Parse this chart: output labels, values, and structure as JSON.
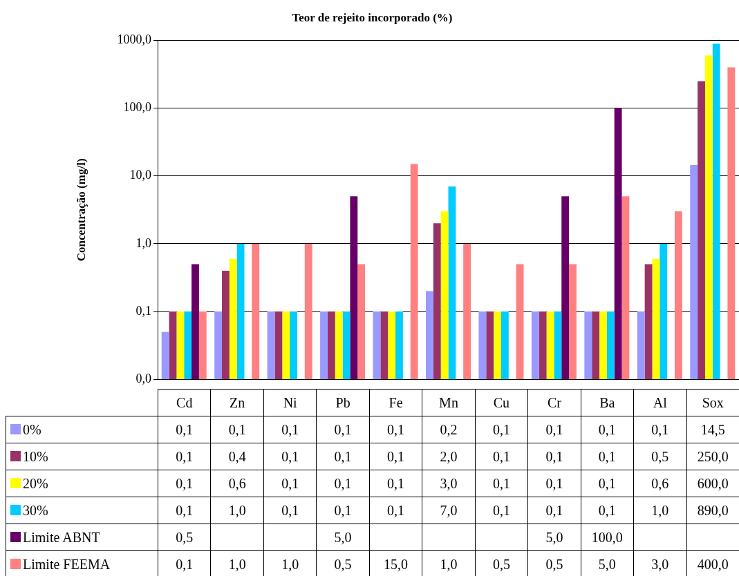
{
  "chart_data": {
    "type": "bar",
    "title": "Teor de rejeito incorporado (%)",
    "ylabel": "Concentração (mg/l)",
    "categories": [
      "Cd",
      "Zn",
      "Ni",
      "Pb",
      "Fe",
      "Mn",
      "Cu",
      "Cr",
      "Ba",
      "Al",
      "Sox"
    ],
    "series": [
      {
        "name": "0%",
        "color": "#9999ff",
        "values": [
          0.05,
          0.1,
          0.1,
          0.1,
          0.1,
          0.2,
          0.1,
          0.1,
          0.1,
          0.1,
          14.5
        ],
        "value_labels": [
          "0,1",
          "0,1",
          "0,1",
          "0,1",
          "0,1",
          "0,2",
          "0,1",
          "0,1",
          "0,1",
          "0,1",
          "14,5"
        ]
      },
      {
        "name": "10%",
        "color": "#993366",
        "values": [
          0.1,
          0.4,
          0.1,
          0.1,
          0.1,
          2,
          0.1,
          0.1,
          0.1,
          0.5,
          250
        ],
        "value_labels": [
          "0,1",
          "0,4",
          "0,1",
          "0,1",
          "0,1",
          "2,0",
          "0,1",
          "0,1",
          "0,1",
          "0,5",
          "250,0"
        ]
      },
      {
        "name": "20%",
        "color": "#ffff00",
        "values": [
          0.1,
          0.6,
          0.1,
          0.1,
          0.1,
          3,
          0.1,
          0.1,
          0.1,
          0.6,
          600
        ],
        "value_labels": [
          "0,1",
          "0,6",
          "0,1",
          "0,1",
          "0,1",
          "3,0",
          "0,1",
          "0,1",
          "0,1",
          "0,6",
          "600,0"
        ]
      },
      {
        "name": "30%",
        "color": "#00ccff",
        "values": [
          0.1,
          1,
          0.1,
          0.1,
          0.1,
          7,
          0.1,
          0.1,
          0.1,
          1,
          890
        ],
        "value_labels": [
          "0,1",
          "1,0",
          "0,1",
          "0,1",
          "0,1",
          "7,0",
          "0,1",
          "0,1",
          "0,1",
          "1,0",
          "890,0"
        ]
      },
      {
        "name": "Limite ABNT",
        "color": "#660066",
        "values": [
          0.5,
          null,
          null,
          5,
          null,
          null,
          null,
          5,
          100,
          null,
          null
        ],
        "value_labels": [
          "0,5",
          null,
          null,
          "5,0",
          null,
          null,
          null,
          "5,0",
          "100,0",
          null,
          null
        ]
      },
      {
        "name": "Limite FEEMA",
        "color": "#ff8080",
        "values": [
          0.1,
          1,
          1,
          0.5,
          15,
          1,
          0.5,
          0.5,
          5,
          3,
          400
        ],
        "value_labels": [
          "0,1",
          "1,0",
          "1,0",
          "0,5",
          "15,0",
          "1,0",
          "0,5",
          "0,5",
          "5,0",
          "3,0",
          "400,0"
        ]
      }
    ],
    "log": "y",
    "ylim": [
      0.01,
      1000
    ],
    "yticks": [
      {
        "value": 0.01,
        "label": "0,0"
      },
      {
        "value": 0.1,
        "label": "0,1"
      },
      {
        "value": 1,
        "label": "1,0"
      },
      {
        "value": 10,
        "label": "10,0"
      },
      {
        "value": 100,
        "label": "100,0"
      },
      {
        "value": 1000,
        "label": "1000,0"
      }
    ],
    "grid": "y",
    "legend": "bottom"
  }
}
